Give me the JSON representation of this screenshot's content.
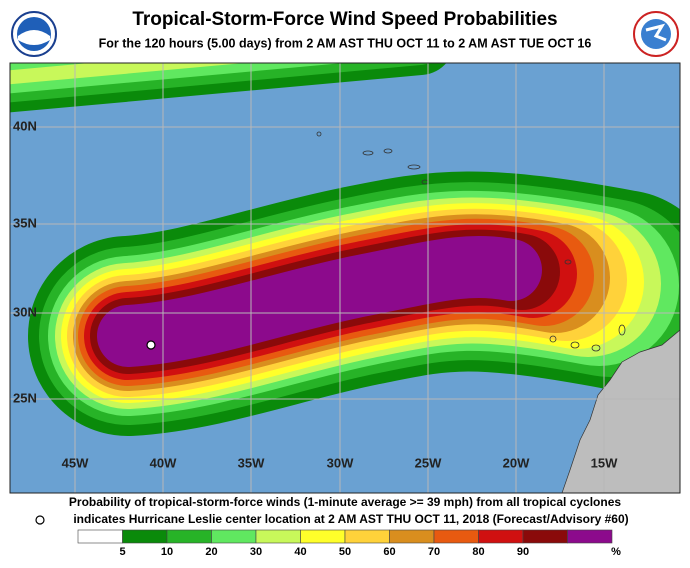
{
  "header": {
    "title": "Tropical-Storm-Force Wind Speed Probabilities",
    "subtitle": "For the 120 hours (5.00 days) from 2 AM AST THU OCT 11 to 2 AM AST TUE OCT 16"
  },
  "map": {
    "lat_labels": [
      "40N",
      "35N",
      "30N",
      "25N"
    ],
    "lon_labels": [
      "45W",
      "40W",
      "35W",
      "30W",
      "25W",
      "20W",
      "15W"
    ]
  },
  "footer": {
    "line1": "Probability of tropical-storm-force winds (1-minute average >= 39 mph) from all tropical cyclones",
    "line2": "indicates Hurricane Leslie center location at 2 AM AST THU OCT 11, 2018 (Forecast/Advisory #60)"
  },
  "legend": {
    "labels": [
      5,
      10,
      20,
      30,
      40,
      50,
      60,
      70,
      80,
      90
    ],
    "unit": "%",
    "colors": [
      "#ffffff",
      "#0a8a0a",
      "#27b327",
      "#60e860",
      "#c8f85a",
      "#ffff2a",
      "#ffd23a",
      "#d98e1e",
      "#e85a10",
      "#d01010",
      "#8a0a0a",
      "#8c0a8c"
    ]
  }
}
